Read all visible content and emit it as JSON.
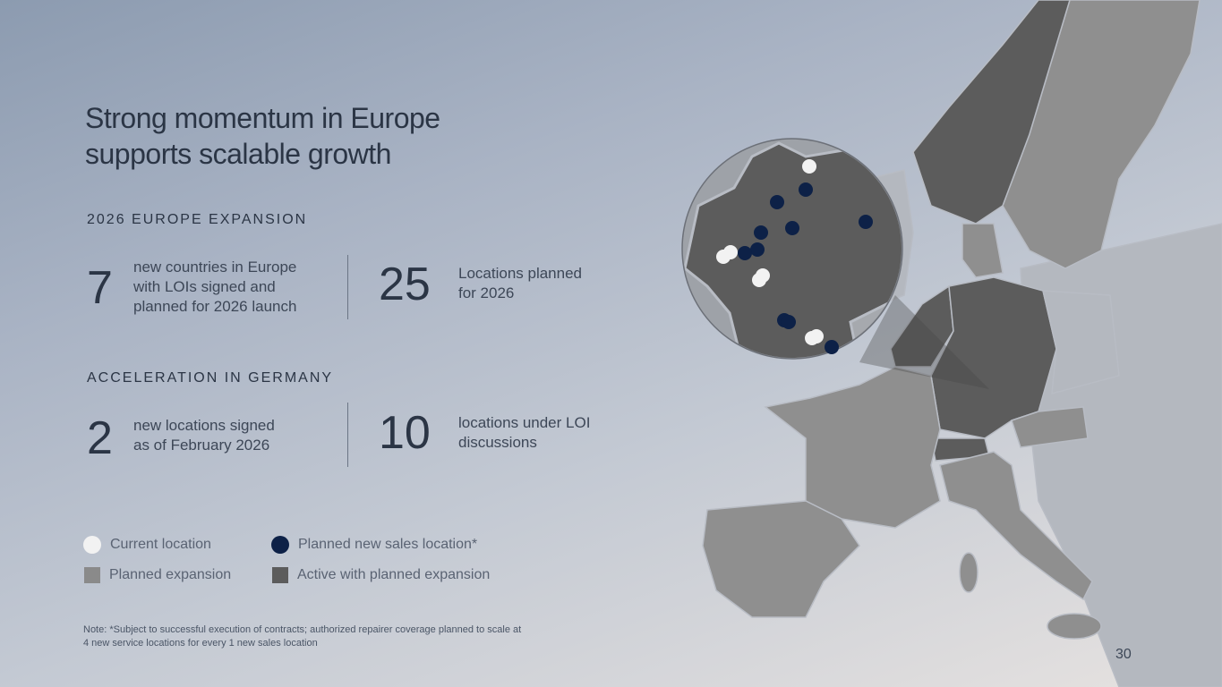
{
  "title_line1": "Strong momentum in Europe",
  "title_line2": "supports scalable growth",
  "europe": {
    "heading": "2026 EUROPE EXPANSION",
    "stat1": {
      "value": "7",
      "text_lines": [
        "new countries in Europe",
        "with LOIs signed and",
        "planned for 2026 launch"
      ]
    },
    "stat2": {
      "value": "25",
      "text_lines": [
        "Locations planned",
        "for 2026"
      ]
    }
  },
  "germany": {
    "heading": "ACCELERATION IN GERMANY",
    "stat1": {
      "value": "2",
      "text_lines": [
        "new locations signed",
        "as of February 2026"
      ]
    },
    "stat2": {
      "value": "10",
      "text_lines": [
        "locations under LOI",
        "discussions"
      ]
    }
  },
  "legend": {
    "current": "Current location",
    "planned_sales": "Planned new sales location*",
    "planned_expansion": "Planned expansion",
    "active": "Active with planned expansion"
  },
  "colors": {
    "current": "#f2f2f2",
    "planned_sales": "#0d2147",
    "planned_expansion": "#8a8a8a",
    "active": "#5c5c5c"
  },
  "note_lines": [
    "Note: *Subject to successful execution of contracts; authorized repairer coverage planned to scale at",
    "4 new service locations for every 1 new sales location"
  ],
  "page_number": "30"
}
